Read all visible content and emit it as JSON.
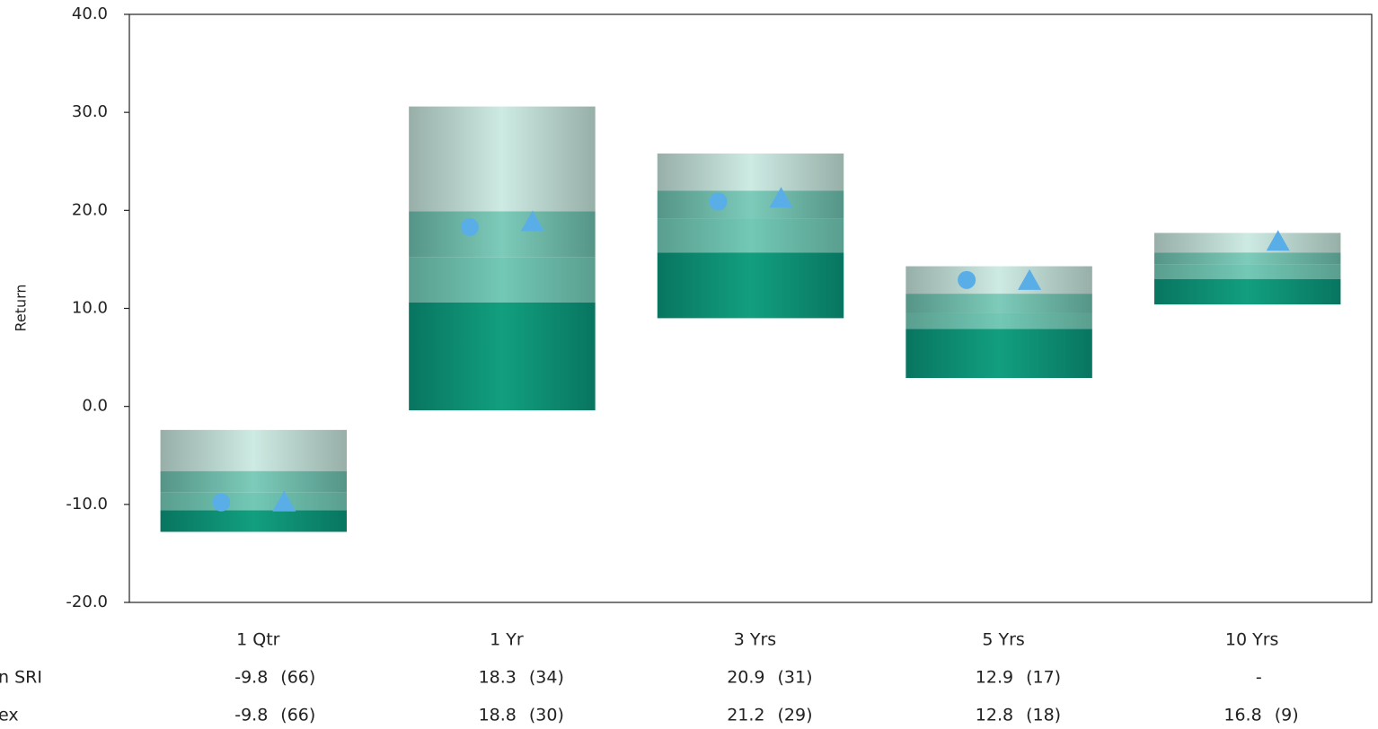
{
  "chart_data": {
    "type": "floating_bar",
    "y_label": "Return",
    "categories": [
      "1 Qtr",
      "1 Yr",
      "3 Yrs",
      "5 Yrs",
      "10 Yrs"
    ],
    "top": [
      -2.4,
      30.6,
      25.8,
      14.3,
      17.7
    ],
    "upper": [
      -6.6,
      19.9,
      22.0,
      11.5,
      15.7
    ],
    "median": [
      -8.8,
      15.2,
      19.2,
      9.5,
      14.5
    ],
    "lower": [
      -10.6,
      10.6,
      15.7,
      7.9,
      13.0
    ],
    "bottom": [
      -12.8,
      -0.4,
      9.0,
      2.9,
      10.4
    ],
    "series": [
      {
        "name": "n SRI",
        "marker": "circle",
        "color": "#5aaee8",
        "values": [
          -9.8,
          18.3,
          20.9,
          12.9,
          null
        ],
        "value_labels": [
          "-9.8",
          "18.3",
          "20.9",
          "12.9",
          "-"
        ],
        "rank_labels": [
          "(66)",
          "(34)",
          "(31)",
          "(17)",
          null
        ]
      },
      {
        "name": "ex",
        "marker": "triangle",
        "color": "#5aaee8",
        "values": [
          -9.8,
          18.8,
          21.2,
          12.8,
          16.8
        ],
        "value_labels": [
          "-9.8",
          "18.8",
          "21.2",
          "12.8",
          "16.8"
        ],
        "rank_labels": [
          "(66)",
          "(30)",
          "(29)",
          "(18)",
          "(9)"
        ]
      }
    ],
    "ylim": [
      -20,
      40
    ],
    "yticks": [
      {
        "value": -20,
        "label": "-20.0"
      },
      {
        "value": -10,
        "label": "-10.0"
      },
      {
        "value": 0,
        "label": "0.0"
      },
      {
        "value": 10,
        "label": "10.0"
      },
      {
        "value": 20,
        "label": "20.0"
      },
      {
        "value": 30,
        "label": "30.0"
      },
      {
        "value": 40,
        "label": "40.0"
      }
    ]
  }
}
